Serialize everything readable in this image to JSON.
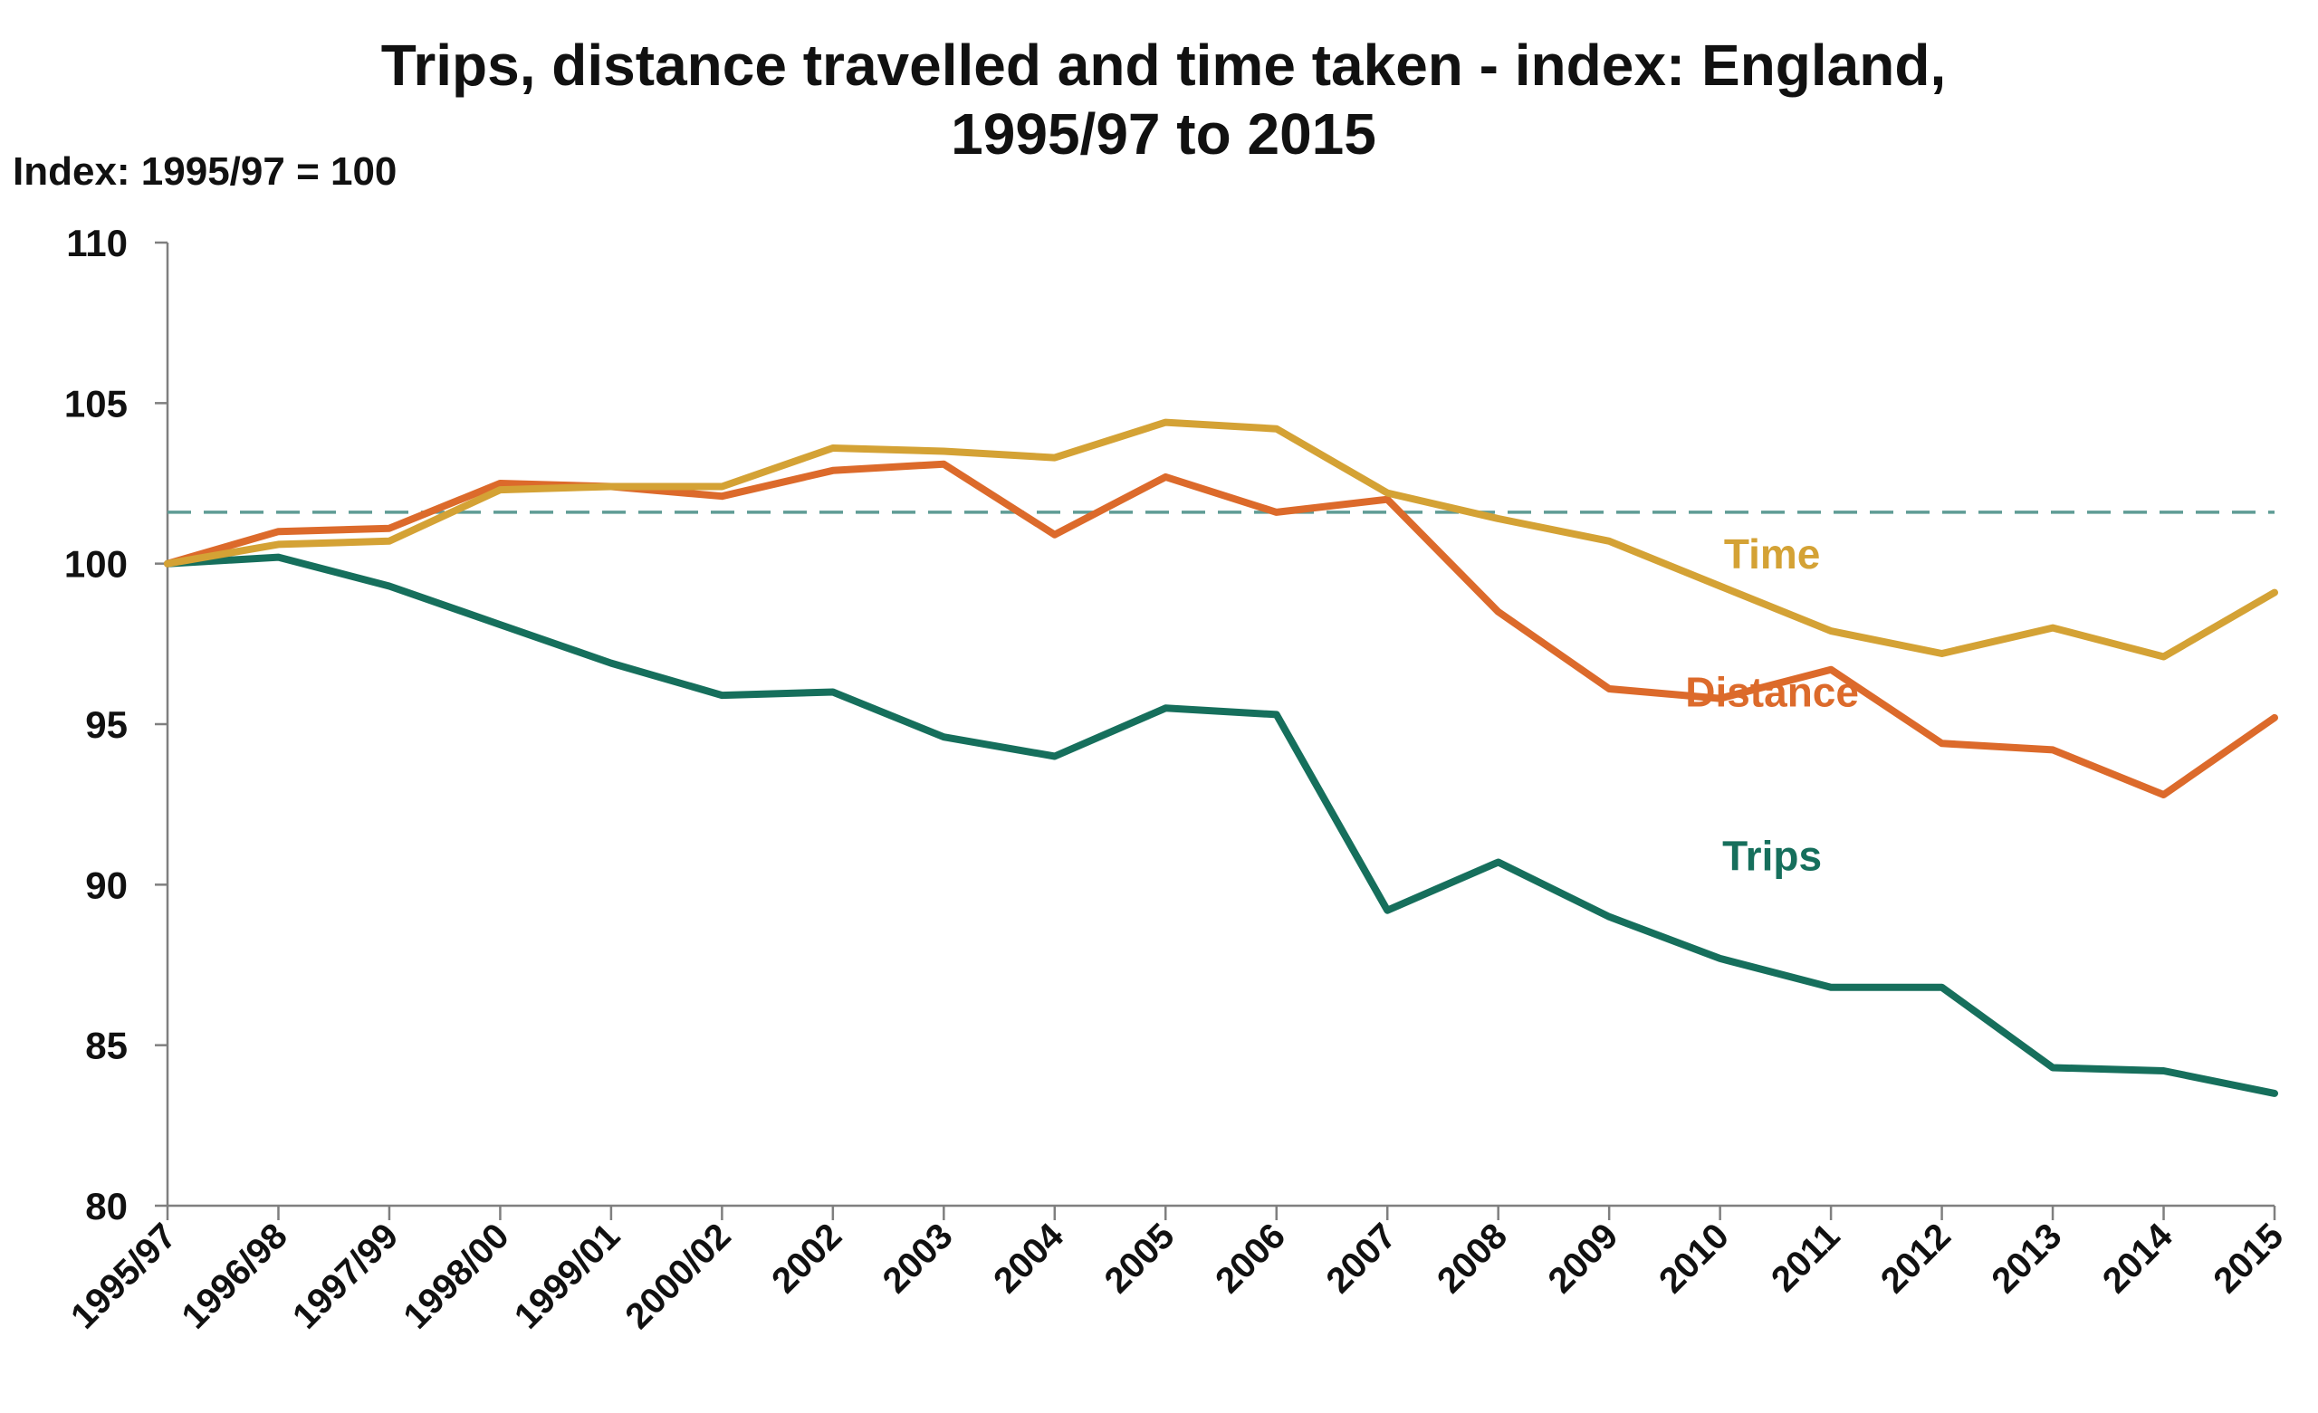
{
  "chart_data": {
    "type": "line",
    "title_line1": "Trips, distance travelled and time taken - index: England,",
    "title_line2": "1995/97 to 2015",
    "ylabel": "Index: 1995/97 = 100",
    "xlabel": "",
    "ylim": [
      80,
      110
    ],
    "yticks": [
      80,
      85,
      90,
      95,
      100,
      105,
      110
    ],
    "grid": false,
    "categories": [
      "1995/97",
      "1996/98",
      "1997/99",
      "1998/00",
      "1999/01",
      "2000/02",
      "2002",
      "2003",
      "2004",
      "2005",
      "2006",
      "2007",
      "2008",
      "2009",
      "2010",
      "2011",
      "2012",
      "2013",
      "2014",
      "2015"
    ],
    "reference_line": {
      "value": 101.6,
      "style": "dashed",
      "color": "#5f9c95"
    },
    "series": [
      {
        "name": "Time",
        "color": "#d4a235",
        "values": [
          100,
          100.6,
          100.7,
          102.3,
          102.4,
          102.4,
          103.6,
          103.5,
          103.3,
          104.4,
          104.2,
          102.2,
          101.4,
          100.7,
          99.3,
          97.9,
          97.2,
          98.0,
          97.1,
          99.1
        ]
      },
      {
        "name": "Distance",
        "color": "#dc6a2b",
        "values": [
          100,
          101.0,
          101.1,
          102.5,
          102.4,
          102.1,
          102.9,
          103.1,
          100.9,
          102.7,
          101.6,
          102.0,
          98.5,
          96.1,
          95.8,
          96.7,
          94.4,
          94.2,
          92.8,
          95.2
        ]
      },
      {
        "name": "Trips",
        "color": "#166f5c",
        "values": [
          100,
          100.2,
          99.3,
          98.1,
          96.9,
          95.9,
          96.0,
          94.6,
          94.0,
          95.5,
          95.3,
          89.2,
          90.7,
          89.0,
          87.7,
          86.8,
          86.8,
          84.3,
          84.2,
          83.5
        ]
      }
    ]
  }
}
